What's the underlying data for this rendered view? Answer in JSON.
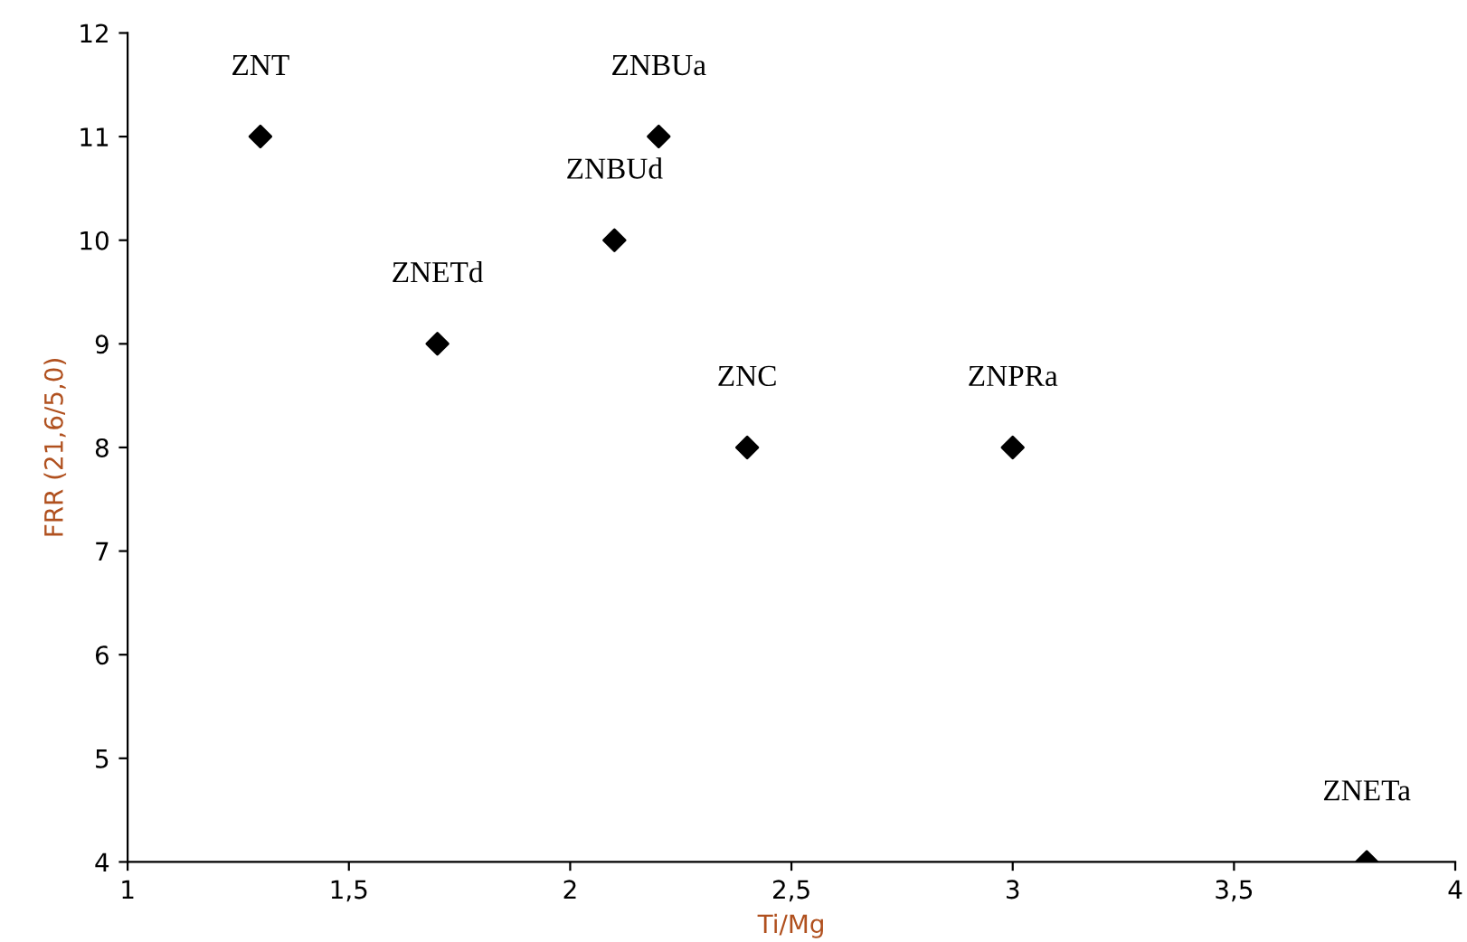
{
  "chart_data": {
    "type": "scatter",
    "xlabel": "Ti/Mg",
    "ylabel": "FRR (21,6/5,0)",
    "x": [
      1.3,
      1.7,
      2.1,
      2.2,
      2.4,
      3.0,
      3.8
    ],
    "series": [
      {
        "color": "#000000",
        "values": [
          11,
          9,
          10,
          11,
          8,
          8,
          4
        ]
      }
    ],
    "marker": "diamond",
    "grid": false,
    "legend": false,
    "xlim": [
      1,
      4
    ],
    "xticks": [
      1,
      {
        "value": 1.5,
        "label": "1,5"
      },
      2,
      {
        "value": 2.5,
        "label": "2,5"
      },
      3,
      {
        "value": 3.5,
        "label": "3,5"
      },
      4
    ],
    "ylim": [
      4,
      12
    ],
    "yticks": [
      4,
      5,
      6,
      7,
      8,
      9,
      10,
      11,
      12
    ],
    "annotations": [
      {
        "text": "ZNT",
        "x": 1.3,
        "y": 11
      },
      {
        "text": "ZNETd",
        "x": 1.7,
        "y": 9
      },
      {
        "text": "ZNBUd",
        "x": 2.1,
        "y": 10
      },
      {
        "text": "ZNBUa",
        "x": 2.2,
        "y": 11
      },
      {
        "text": "ZNC",
        "x": 2.4,
        "y": 8
      },
      {
        "text": "ZNPRa",
        "x": 3.0,
        "y": 8
      },
      {
        "text": "ZNETa",
        "x": 3.8,
        "y": 4
      }
    ]
  }
}
